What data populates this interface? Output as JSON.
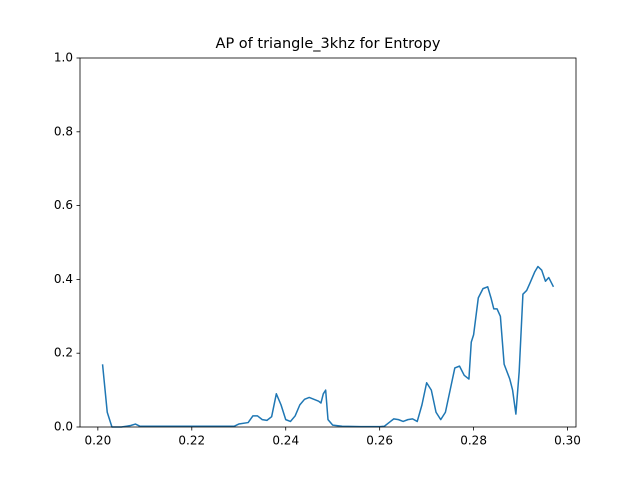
{
  "chart_data": {
    "type": "line",
    "title": "AP of triangle_3khz for Entropy",
    "color": "#1f77b4",
    "x": [
      0.201,
      0.202,
      0.203,
      0.205,
      0.207,
      0.208,
      0.209,
      0.212,
      0.216,
      0.22,
      0.225,
      0.229,
      0.23,
      0.232,
      0.233,
      0.234,
      0.235,
      0.236,
      0.237,
      0.238,
      0.239,
      0.24,
      0.241,
      0.242,
      0.243,
      0.244,
      0.245,
      0.246,
      0.247,
      0.2475,
      0.248,
      0.2485,
      0.249,
      0.25,
      0.252,
      0.256,
      0.26,
      0.261,
      0.262,
      0.263,
      0.264,
      0.265,
      0.266,
      0.267,
      0.268,
      0.269,
      0.27,
      0.271,
      0.272,
      0.273,
      0.274,
      0.275,
      0.276,
      0.277,
      0.278,
      0.279,
      0.2795,
      0.28,
      0.281,
      0.282,
      0.283,
      0.2837,
      0.2843,
      0.285,
      0.2857,
      0.2865,
      0.2877,
      0.2883,
      0.289,
      0.2897,
      0.2905,
      0.2913,
      0.292,
      0.293,
      0.2937,
      0.2945,
      0.2953,
      0.296,
      0.297
    ],
    "values": [
      0.17,
      0.04,
      0,
      0,
      0.004,
      0.008,
      0.002,
      0.002,
      0.002,
      0.002,
      0.002,
      0.002,
      0.008,
      0.012,
      0.03,
      0.03,
      0.02,
      0.018,
      0.028,
      0.09,
      0.06,
      0.02,
      0.015,
      0.03,
      0.06,
      0.075,
      0.08,
      0.075,
      0.07,
      0.065,
      0.09,
      0.1,
      0.02,
      0.005,
      0.002,
      0.001,
      0.001,
      0.002,
      0.012,
      0.022,
      0.02,
      0.015,
      0.02,
      0.022,
      0.015,
      0.06,
      0.12,
      0.1,
      0.04,
      0.02,
      0.04,
      0.1,
      0.16,
      0.165,
      0.14,
      0.13,
      0.23,
      0.25,
      0.35,
      0.375,
      0.38,
      0.35,
      0.32,
      0.32,
      0.3,
      0.17,
      0.13,
      0.1,
      0.035,
      0.15,
      0.36,
      0.37,
      0.39,
      0.42,
      0.435,
      0.425,
      0.395,
      0.405,
      0.38
    ],
    "xlim": [
      0.1962,
      0.3018
    ],
    "xticks": [
      {
        "value": 0.2,
        "label": "0.20"
      },
      {
        "value": 0.22,
        "label": "0.22"
      },
      {
        "value": 0.24,
        "label": "0.24"
      },
      {
        "value": 0.26,
        "label": "0.26"
      },
      {
        "value": 0.28,
        "label": "0.28"
      },
      {
        "value": 0.3,
        "label": "0.30"
      }
    ],
    "ylim": [
      0,
      1
    ],
    "yticks": [
      {
        "value": 0,
        "label": "0.0"
      },
      {
        "value": 0.2,
        "label": "0.2"
      },
      {
        "value": 0.4,
        "label": "0.4"
      },
      {
        "value": 0.6,
        "label": "0.6"
      },
      {
        "value": 0.8,
        "label": "0.8"
      },
      {
        "value": 1,
        "label": "1.0"
      }
    ]
  }
}
